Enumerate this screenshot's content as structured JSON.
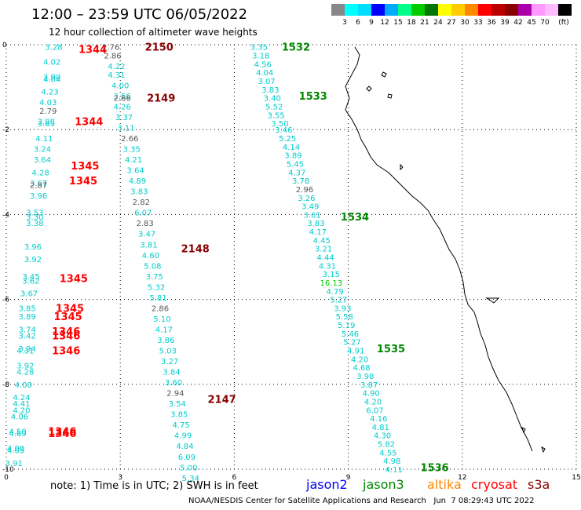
{
  "header": {
    "title": "12:00 – 23:59 UTC 06/05/2022",
    "subtitle": "12 hour collection of altimeter wave heights"
  },
  "legend": {
    "unit": "(ft)",
    "bins": [
      {
        "label": "",
        "color": "#888888"
      },
      {
        "label": "3",
        "color": "#00ffff"
      },
      {
        "label": "6",
        "color": "#00ddff"
      },
      {
        "label": "9",
        "color": "#0000ff"
      },
      {
        "label": "12",
        "color": "#00aaff"
      },
      {
        "label": "15",
        "color": "#00ff88"
      },
      {
        "label": "18",
        "color": "#00cc00"
      },
      {
        "label": "21",
        "color": "#007700"
      },
      {
        "label": "24",
        "color": "#ffff00"
      },
      {
        "label": "27",
        "color": "#ffcc00"
      },
      {
        "label": "30",
        "color": "#ff8800"
      },
      {
        "label": "33",
        "color": "#ff0000"
      },
      {
        "label": "36",
        "color": "#bb0000"
      },
      {
        "label": "39",
        "color": "#880000"
      },
      {
        "label": "42",
        "color": "#aa00aa"
      },
      {
        "label": "45",
        "color": "#ff99ff"
      },
      {
        "label": "70",
        "color": "#ffbbff"
      },
      {
        "label": "",
        "color": "#000000"
      }
    ]
  },
  "axes": {
    "x_ticks": [
      "0",
      "3",
      "6",
      "9",
      "12",
      "15"
    ],
    "y_ticks": [
      "0",
      "-2",
      "-4",
      "-6",
      "-8",
      "-10"
    ]
  },
  "notes": {
    "note_text": "note: 1) Time is in UTC; 2) SWH is in feet",
    "satellites": [
      {
        "name": "jason2",
        "color": "#0000ff"
      },
      {
        "name": "jason3",
        "color": "#008800"
      },
      {
        "name": "altika",
        "color": "#ff8800"
      },
      {
        "name": "cryosat",
        "color": "#ff0000"
      },
      {
        "name": "s3a",
        "color": "#880000"
      }
    ],
    "credit": "NOAA/NESDIS Center for Satellite Applications and Research   Jun  7 08:29:43 UTC 2022"
  },
  "tracks": [
    {
      "satellite": "cryosat",
      "color_label": "#ff0000",
      "time_labels": [
        {
          "x": 1.9,
          "y": -0.1,
          "text": "1344"
        },
        {
          "x": 1.8,
          "y": -1.8,
          "text": "1344"
        },
        {
          "x": 1.7,
          "y": -2.85,
          "text": "1345"
        },
        {
          "x": 1.65,
          "y": -3.2,
          "text": "1345"
        },
        {
          "x": 1.4,
          "y": -5.5,
          "text": "1345"
        },
        {
          "x": 1.3,
          "y": -6.2,
          "text": "1345"
        },
        {
          "x": 1.25,
          "y": -6.4,
          "text": "1345"
        },
        {
          "x": 1.2,
          "y": -6.75,
          "text": "1346"
        },
        {
          "x": 1.2,
          "y": -6.85,
          "text": "1346"
        },
        {
          "x": 1.2,
          "y": -7.2,
          "text": "1346"
        },
        {
          "x": 1.1,
          "y": -9.1,
          "text": "1346"
        },
        {
          "x": 1.1,
          "y": -9.15,
          "text": "1346"
        }
      ],
      "values": [
        {
          "x": 1.25,
          "y": -0.05,
          "text": "3.28"
        },
        {
          "x": 1.2,
          "y": -0.4,
          "text": "4.02"
        },
        {
          "x": 1.2,
          "y": -0.75,
          "text": "3.90"
        },
        {
          "x": 1.2,
          "y": -0.8,
          "text": "4.04"
        },
        {
          "x": 1.15,
          "y": -1.1,
          "text": "4.23"
        },
        {
          "x": 1.1,
          "y": -1.35,
          "text": "4.03"
        },
        {
          "x": 1.1,
          "y": -1.55,
          "text": "2.79",
          "gray": true
        },
        {
          "x": 1.05,
          "y": -1.8,
          "text": "3.88"
        },
        {
          "x": 1.05,
          "y": -1.85,
          "text": "3.89"
        },
        {
          "x": 1.0,
          "y": -2.2,
          "text": "4.11"
        },
        {
          "x": 0.95,
          "y": -2.45,
          "text": "3.24"
        },
        {
          "x": 0.95,
          "y": -2.7,
          "text": "3.64"
        },
        {
          "x": 0.9,
          "y": -3.0,
          "text": "4.28"
        },
        {
          "x": 0.85,
          "y": -3.25,
          "text": "3.67"
        },
        {
          "x": 0.85,
          "y": -3.3,
          "text": "2.87",
          "gray": true
        },
        {
          "x": 0.85,
          "y": -3.55,
          "text": "3.96"
        },
        {
          "x": 0.75,
          "y": -3.95,
          "text": "3.53"
        },
        {
          "x": 0.75,
          "y": -4.05,
          "text": "3.30"
        },
        {
          "x": 0.75,
          "y": -4.2,
          "text": "3.38"
        },
        {
          "x": 0.7,
          "y": -4.75,
          "text": "3.96"
        },
        {
          "x": 0.7,
          "y": -5.05,
          "text": "3.92"
        },
        {
          "x": 0.65,
          "y": -5.45,
          "text": "3.45"
        },
        {
          "x": 0.65,
          "y": -5.55,
          "text": "3.62"
        },
        {
          "x": 0.6,
          "y": -5.85,
          "text": "3.67"
        },
        {
          "x": 0.55,
          "y": -6.2,
          "text": "3.85"
        },
        {
          "x": 0.55,
          "y": -6.4,
          "text": "3.89"
        },
        {
          "x": 0.55,
          "y": -6.7,
          "text": "3.74"
        },
        {
          "x": 0.55,
          "y": -6.85,
          "text": "3.42"
        },
        {
          "x": 0.55,
          "y": -7.15,
          "text": "3.94"
        },
        {
          "x": 0.5,
          "y": -7.2,
          "text": "4.31"
        },
        {
          "x": 0.5,
          "y": -7.55,
          "text": "3.92"
        },
        {
          "x": 0.5,
          "y": -7.7,
          "text": "4.28"
        },
        {
          "x": 0.45,
          "y": -8.0,
          "text": "4.00"
        },
        {
          "x": 0.4,
          "y": -8.3,
          "text": "4.24"
        },
        {
          "x": 0.4,
          "y": -8.45,
          "text": "4.41"
        },
        {
          "x": 0.4,
          "y": -8.6,
          "text": "4.20"
        },
        {
          "x": 0.35,
          "y": -8.75,
          "text": "4.06"
        },
        {
          "x": 0.3,
          "y": -9.1,
          "text": "4.50"
        },
        {
          "x": 0.3,
          "y": -9.15,
          "text": "4.69"
        },
        {
          "x": 0.25,
          "y": -9.5,
          "text": "4.00"
        },
        {
          "x": 0.25,
          "y": -9.55,
          "text": "4.05"
        },
        {
          "x": 0.2,
          "y": -9.85,
          "text": "3.91"
        }
      ]
    },
    {
      "satellite": "s3a",
      "color_label": "#880000",
      "time_labels": [
        {
          "x": 3.65,
          "y": -0.05,
          "text": "2150"
        },
        {
          "x": 3.7,
          "y": -1.25,
          "text": "2149"
        },
        {
          "x": 4.6,
          "y": -4.8,
          "text": "2148"
        },
        {
          "x": 5.3,
          "y": -8.35,
          "text": "2147"
        }
      ],
      "values": [
        {
          "x": 2.75,
          "y": -0.05,
          "text": "2.76",
          "gray": true
        },
        {
          "x": 2.8,
          "y": -0.25,
          "text": "2.86",
          "gray": true
        },
        {
          "x": 2.9,
          "y": -0.5,
          "text": "4.22"
        },
        {
          "x": 2.9,
          "y": -0.7,
          "text": "4.31"
        },
        {
          "x": 3.0,
          "y": -0.95,
          "text": "4.00"
        },
        {
          "x": 3.05,
          "y": -1.2,
          "text": "3.56"
        },
        {
          "x": 3.05,
          "y": -1.25,
          "text": "2.66",
          "gray": true
        },
        {
          "x": 3.05,
          "y": -1.45,
          "text": "4.26"
        },
        {
          "x": 3.1,
          "y": -1.7,
          "text": "3.37"
        },
        {
          "x": 3.15,
          "y": -1.95,
          "text": "3.11"
        },
        {
          "x": 3.25,
          "y": -2.2,
          "text": "2.66",
          "gray": true
        },
        {
          "x": 3.3,
          "y": -2.45,
          "text": "3.35"
        },
        {
          "x": 3.35,
          "y": -2.7,
          "text": "4.21"
        },
        {
          "x": 3.4,
          "y": -2.95,
          "text": "3.64"
        },
        {
          "x": 3.45,
          "y": -3.2,
          "text": "4.89"
        },
        {
          "x": 3.5,
          "y": -3.45,
          "text": "3.83"
        },
        {
          "x": 3.55,
          "y": -3.7,
          "text": "2.82",
          "gray": true
        },
        {
          "x": 3.6,
          "y": -3.95,
          "text": "6.07"
        },
        {
          "x": 3.65,
          "y": -4.2,
          "text": "2.83",
          "gray": true
        },
        {
          "x": 3.7,
          "y": -4.45,
          "text": "3.47"
        },
        {
          "x": 3.75,
          "y": -4.7,
          "text": "3.81"
        },
        {
          "x": 3.8,
          "y": -4.95,
          "text": "4.60"
        },
        {
          "x": 3.85,
          "y": -5.2,
          "text": "5.08"
        },
        {
          "x": 3.9,
          "y": -5.45,
          "text": "3.75"
        },
        {
          "x": 3.95,
          "y": -5.7,
          "text": "5.32"
        },
        {
          "x": 4.0,
          "y": -5.95,
          "text": "5.81"
        },
        {
          "x": 4.05,
          "y": -6.2,
          "text": "2.86",
          "gray": true
        },
        {
          "x": 4.1,
          "y": -6.45,
          "text": "5.10"
        },
        {
          "x": 4.15,
          "y": -6.7,
          "text": "4.17"
        },
        {
          "x": 4.2,
          "y": -6.95,
          "text": "3.86"
        },
        {
          "x": 4.25,
          "y": -7.2,
          "text": "5.03"
        },
        {
          "x": 4.3,
          "y": -7.45,
          "text": "3.27"
        },
        {
          "x": 4.35,
          "y": -7.7,
          "text": "3.84"
        },
        {
          "x": 4.4,
          "y": -7.95,
          "text": "3.60"
        },
        {
          "x": 4.45,
          "y": -8.2,
          "text": "2.94",
          "gray": true
        },
        {
          "x": 4.5,
          "y": -8.45,
          "text": "3.54"
        },
        {
          "x": 4.55,
          "y": -8.7,
          "text": "3.85"
        },
        {
          "x": 4.6,
          "y": -8.95,
          "text": "4.75"
        },
        {
          "x": 4.65,
          "y": -9.2,
          "text": "4.99"
        },
        {
          "x": 4.7,
          "y": -9.45,
          "text": "4.84"
        },
        {
          "x": 4.75,
          "y": -9.7,
          "text": "6.09"
        },
        {
          "x": 4.8,
          "y": -9.95,
          "text": "5.00"
        },
        {
          "x": 4.85,
          "y": -10.2,
          "text": "5.34"
        }
      ]
    },
    {
      "satellite": "jason3",
      "color_label": "#008800",
      "time_labels": [
        {
          "x": 7.25,
          "y": -0.05,
          "text": "1532"
        },
        {
          "x": 7.7,
          "y": -1.2,
          "text": "1533"
        },
        {
          "x": 8.8,
          "y": -4.05,
          "text": "1534"
        },
        {
          "x": 9.75,
          "y": -7.15,
          "text": "1535"
        },
        {
          "x": 10.9,
          "y": -9.95,
          "text": "1536"
        }
      ],
      "values": [
        {
          "x": 6.65,
          "y": -0.05,
          "text": "3.35"
        },
        {
          "x": 6.7,
          "y": -0.25,
          "text": "3.18"
        },
        {
          "x": 6.75,
          "y": -0.45,
          "text": "4.56"
        },
        {
          "x": 6.8,
          "y": -0.65,
          "text": "4.04"
        },
        {
          "x": 6.85,
          "y": -0.85,
          "text": "3.07"
        },
        {
          "x": 6.95,
          "y": -1.05,
          "text": "3.83"
        },
        {
          "x": 7.0,
          "y": -1.25,
          "text": "3.40"
        },
        {
          "x": 7.05,
          "y": -1.45,
          "text": "5.52"
        },
        {
          "x": 7.1,
          "y": -1.65,
          "text": "3.55"
        },
        {
          "x": 7.2,
          "y": -1.85,
          "text": "3.50"
        },
        {
          "x": 7.3,
          "y": -2.0,
          "text": "3.46"
        },
        {
          "x": 7.4,
          "y": -2.2,
          "text": "5.25"
        },
        {
          "x": 7.5,
          "y": -2.4,
          "text": "4.14"
        },
        {
          "x": 7.55,
          "y": -2.6,
          "text": "3.89"
        },
        {
          "x": 7.6,
          "y": -2.8,
          "text": "5.45"
        },
        {
          "x": 7.65,
          "y": -3.0,
          "text": "4.37"
        },
        {
          "x": 7.75,
          "y": -3.2,
          "text": "3.78"
        },
        {
          "x": 7.85,
          "y": -3.4,
          "text": "2.96",
          "gray": true
        },
        {
          "x": 7.9,
          "y": -3.6,
          "text": "3.26"
        },
        {
          "x": 8.0,
          "y": -3.8,
          "text": "3.49"
        },
        {
          "x": 8.05,
          "y": -4.0,
          "text": "3.61"
        },
        {
          "x": 8.15,
          "y": -4.2,
          "text": "3.83"
        },
        {
          "x": 8.2,
          "y": -4.4,
          "text": "4.17"
        },
        {
          "x": 8.3,
          "y": -4.6,
          "text": "4.45"
        },
        {
          "x": 8.35,
          "y": -4.8,
          "text": "3.21"
        },
        {
          "x": 8.4,
          "y": -5.0,
          "text": "4.44"
        },
        {
          "x": 8.45,
          "y": -5.2,
          "text": "4.31"
        },
        {
          "x": 8.55,
          "y": -5.4,
          "text": "3.15"
        },
        {
          "x": 8.55,
          "y": -5.6,
          "text": "16.13",
          "color": "#00cc00"
        },
        {
          "x": 8.65,
          "y": -5.8,
          "text": "4.79"
        },
        {
          "x": 8.75,
          "y": -6.0,
          "text": "5.27"
        },
        {
          "x": 8.85,
          "y": -6.2,
          "text": "3.93"
        },
        {
          "x": 8.9,
          "y": -6.4,
          "text": "5.58"
        },
        {
          "x": 8.95,
          "y": -6.6,
          "text": "5.19"
        },
        {
          "x": 9.05,
          "y": -6.8,
          "text": "5.46"
        },
        {
          "x": 9.1,
          "y": -7.0,
          "text": "5.27"
        },
        {
          "x": 9.2,
          "y": -7.2,
          "text": "4.91"
        },
        {
          "x": 9.3,
          "y": -7.4,
          "text": "4.20"
        },
        {
          "x": 9.35,
          "y": -7.6,
          "text": "4.68"
        },
        {
          "x": 9.45,
          "y": -7.8,
          "text": "3.98"
        },
        {
          "x": 9.55,
          "y": -8.0,
          "text": "3.87"
        },
        {
          "x": 9.6,
          "y": -8.2,
          "text": "4.90"
        },
        {
          "x": 9.65,
          "y": -8.4,
          "text": "4.20"
        },
        {
          "x": 9.7,
          "y": -8.6,
          "text": "6.07"
        },
        {
          "x": 9.8,
          "y": -8.8,
          "text": "4.16"
        },
        {
          "x": 9.85,
          "y": -9.0,
          "text": "4.81"
        },
        {
          "x": 9.9,
          "y": -9.2,
          "text": "4.30"
        },
        {
          "x": 10.0,
          "y": -9.4,
          "text": "5.82"
        },
        {
          "x": 10.05,
          "y": -9.6,
          "text": "4.55"
        },
        {
          "x": 10.15,
          "y": -9.8,
          "text": "4.98"
        },
        {
          "x": 10.2,
          "y": -10.0,
          "text": "4.11"
        }
      ]
    }
  ]
}
